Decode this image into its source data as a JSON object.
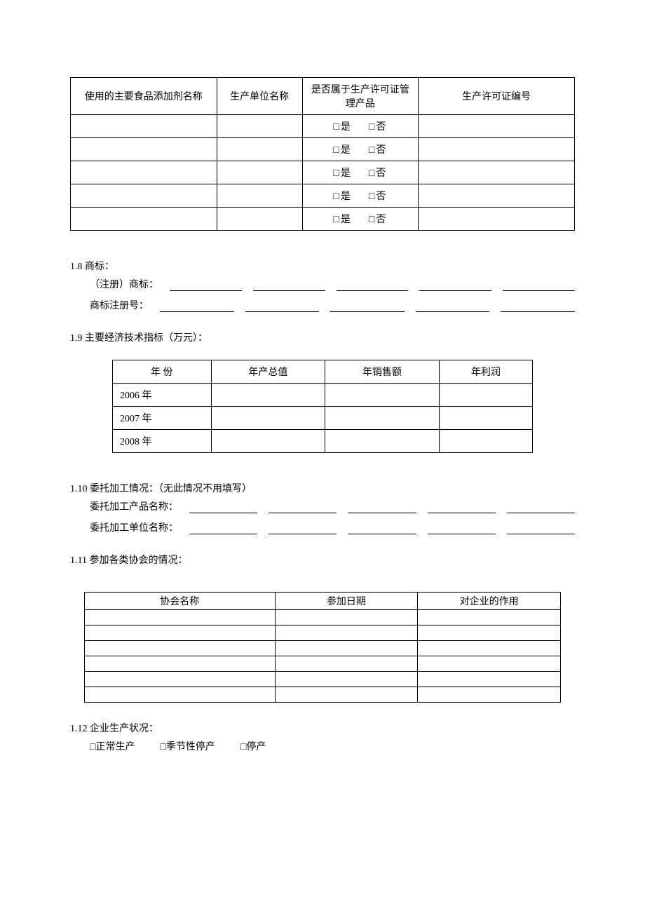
{
  "table1": {
    "headers": [
      "使用的主要食品添加剂名称",
      "生产单位名称",
      "是否属于生产许可证管理产品",
      "生产许可证编号"
    ],
    "col_widths_percent": [
      29,
      17,
      23,
      31
    ],
    "yes_label": "□是",
    "no_label": "□否",
    "row_count": 5
  },
  "s18": {
    "heading": "1.8 商标：",
    "line1_label": "（注册）商标：",
    "line2_label": "商标注册号：",
    "blank_count": 5
  },
  "s19": {
    "heading": "1.9 主要经济技术指标（万元）：",
    "headers": [
      "年   份",
      "年产总值",
      "年销售额",
      "年利润"
    ],
    "rows": [
      "2006 年",
      "2007 年",
      "2008 年"
    ]
  },
  "s110": {
    "heading": "1.10 委托加工情况：（无此情况不用填写）",
    "line1_label": "委托加工产品名称：",
    "line2_label": "委托加工单位名称：",
    "blank_count": 5
  },
  "s111": {
    "heading": "1.11  参加各类协会的情况：",
    "headers": [
      "协会名称",
      "参加日期",
      "对企业的作用"
    ],
    "col_widths_percent": [
      40,
      30,
      30
    ],
    "row_count": 6
  },
  "s112": {
    "heading": "1.12  企业生产状况：",
    "options": [
      "□正常生产",
      "□季节性停产",
      "□停产"
    ]
  }
}
